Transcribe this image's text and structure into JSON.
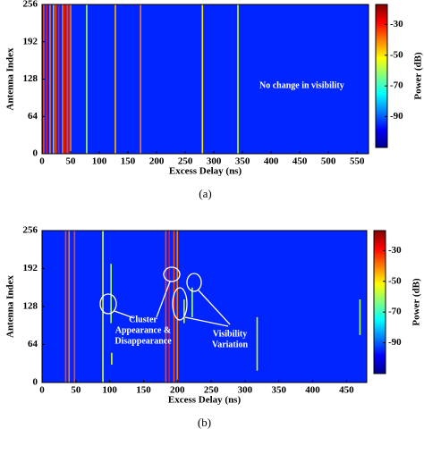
{
  "chart_data": [
    {
      "type": "heatmap",
      "caption": "(a)",
      "xlabel": "Excess Delay (ns)",
      "ylabel": "Antenna Index",
      "colorbar_label": "Power (dB)",
      "xlim": [
        0,
        570
      ],
      "ylim": [
        0,
        256
      ],
      "xticks": [
        0,
        50,
        100,
        150,
        200,
        250,
        300,
        350,
        400,
        450,
        500,
        550
      ],
      "yticks": [
        0,
        64,
        128,
        192,
        256
      ],
      "clim": [
        -110,
        -17
      ],
      "colorbar_ticks": [
        -30,
        -50,
        -70,
        -90
      ],
      "background": -95,
      "annotations": [
        [
          "No change in visibility"
        ]
      ],
      "segments": {
        "x": [
          3,
          8,
          14,
          20,
          24,
          29,
          36,
          40,
          44,
          47,
          50,
          78,
          128,
          172,
          280,
          342
        ],
        "y0": [
          0,
          0,
          0,
          0,
          0,
          0,
          0,
          0,
          0,
          0,
          0,
          0,
          0,
          0,
          0,
          0
        ],
        "y1": [
          256,
          256,
          256,
          256,
          256,
          256,
          256,
          256,
          256,
          256,
          256,
          256,
          256,
          256,
          256,
          256
        ],
        "power": [
          -35,
          -30,
          -40,
          -45,
          -35,
          -30,
          -40,
          -30,
          -35,
          -30,
          -40,
          -60,
          -45,
          -40,
          -50,
          -55
        ]
      }
    },
    {
      "type": "heatmap",
      "caption": "(b)",
      "xlabel": "Excess Delay (ns)",
      "ylabel": "Antenna Index",
      "colorbar_label": "Power (dB)",
      "xlim": [
        0,
        480
      ],
      "ylim": [
        0,
        256
      ],
      "xticks": [
        0,
        50,
        100,
        150,
        200,
        250,
        300,
        350,
        400,
        450
      ],
      "yticks": [
        0,
        64,
        128,
        192,
        256
      ],
      "clim": [
        -110,
        -17
      ],
      "colorbar_ticks": [
        -30,
        -50,
        -70,
        -90
      ],
      "background": -95,
      "annotations": [
        [
          "Cluster",
          "Appearance &",
          "Disappearance"
        ],
        [
          "Visibility",
          "Variation"
        ]
      ],
      "segments": {
        "x": [
          35,
          40,
          48,
          90,
          102,
          103,
          183,
          188,
          195,
          200,
          210,
          222,
          318,
          470
        ],
        "y0": [
          0,
          0,
          0,
          0,
          100,
          30,
          0,
          0,
          0,
          0,
          100,
          110,
          20,
          80
        ],
        "y1": [
          256,
          256,
          256,
          256,
          200,
          50,
          256,
          256,
          256,
          256,
          140,
          160,
          110,
          140
        ],
        "power": [
          -35,
          -40,
          -35,
          -55,
          -60,
          -55,
          -35,
          -30,
          -35,
          -40,
          -55,
          -60,
          -55,
          -60
        ]
      }
    }
  ]
}
